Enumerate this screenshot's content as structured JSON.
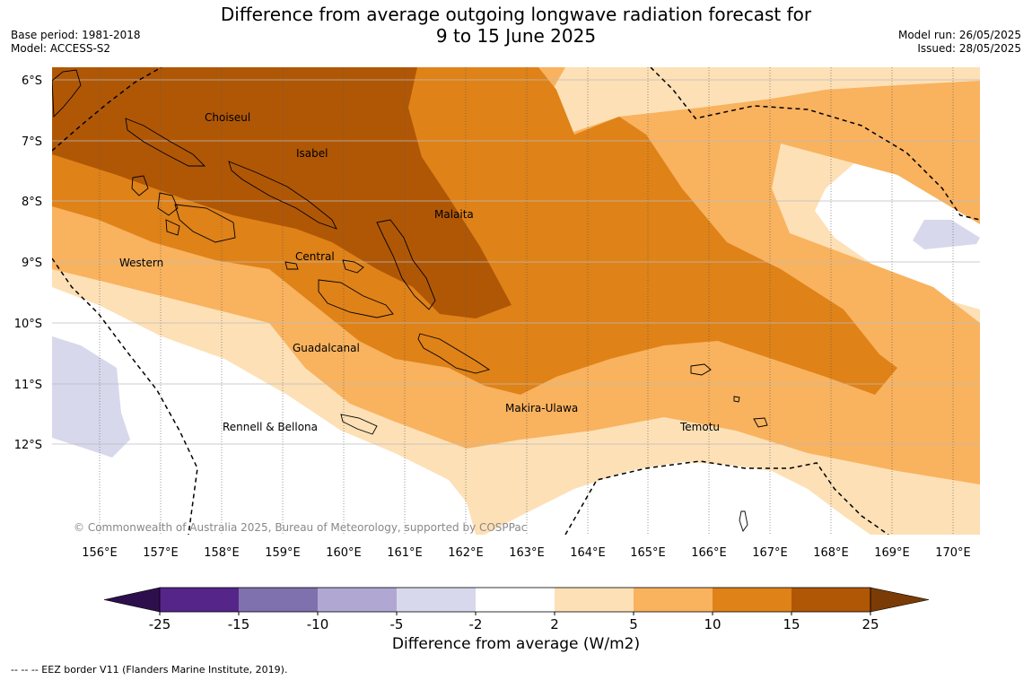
{
  "header": {
    "title_line1": "Difference from average outgoing longwave radiation forecast for",
    "title_line2": "9 to 15 June 2025",
    "base_period": "Base period: 1981-2018",
    "model": "Model: ACCESS-S2",
    "model_run": "Model run: 26/05/2025",
    "issued": "Issued: 28/05/2025"
  },
  "map": {
    "lat_labels": [
      "6°S",
      "7°S",
      "8°S",
      "9°S",
      "10°S",
      "11°S",
      "12°S"
    ],
    "lon_labels": [
      "156°E",
      "157°E",
      "158°E",
      "159°E",
      "160°E",
      "161°E",
      "162°E",
      "163°E",
      "164°E",
      "165°E",
      "166°E",
      "167°E",
      "168°E",
      "169°E",
      "170°E"
    ],
    "places": {
      "choiseul": "Choiseul",
      "isabel": "Isabel",
      "malaita": "Malaita",
      "western": "Western",
      "central": "Central",
      "guadalcanal": "Guadalcanal",
      "makira": "Makira-Ulawa",
      "rennell": "Rennell & Bellona",
      "temotu": "Temotu"
    },
    "copyright": "© Commonwealth of Australia 2025, Bureau of Meteorology, supported by COSPPac"
  },
  "colorbar": {
    "ticks": [
      "-25",
      "-15",
      "-10",
      "-5",
      "-2",
      "2",
      "5",
      "10",
      "15",
      "25"
    ],
    "colors": [
      "#2d0f4e",
      "#55258a",
      "#7f71ad",
      "#b0a8d3",
      "#d7d8eb",
      "#ffffff",
      "#fde0b6",
      "#f9b25e",
      "#df8218",
      "#b05706",
      "#7b3b06"
    ],
    "label": "Difference from average (W/m2)"
  },
  "footer": {
    "legend": "--  --  -- EEZ border V11 (Flanders Marine Institute, 2019)."
  }
}
